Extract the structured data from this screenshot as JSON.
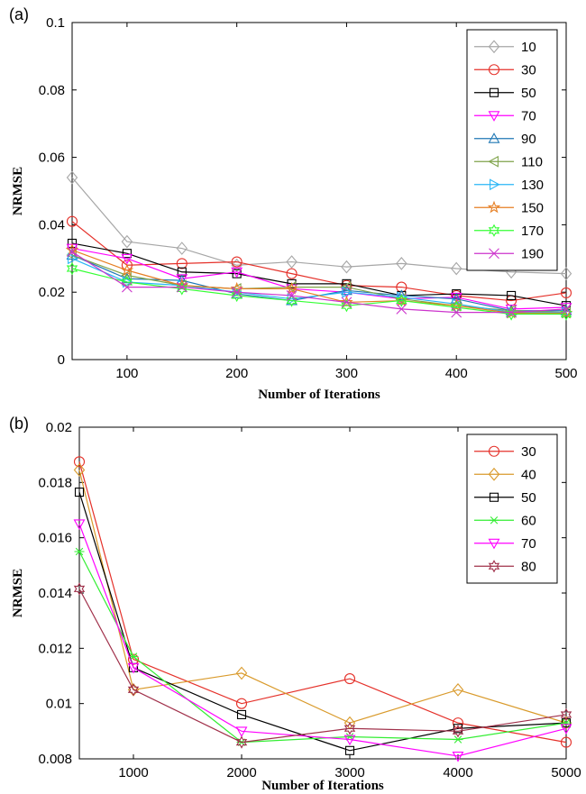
{
  "chart_data": [
    {
      "type": "line",
      "panel_label": "(a)",
      "xlabel": "Number of Iterations",
      "ylabel": "NRMSE",
      "xlim": [
        50,
        500
      ],
      "ylim": [
        0,
        0.1
      ],
      "x_ticks": [
        100,
        200,
        300,
        400,
        500
      ],
      "x_tick_labels": [
        "100",
        "200",
        "300",
        "400",
        "500"
      ],
      "y_ticks": [
        0,
        0.02,
        0.04,
        0.06,
        0.08,
        0.1
      ],
      "y_tick_labels": [
        "0",
        "0.02",
        "0.04",
        "0.06",
        "0.08",
        "0.1"
      ],
      "legend_position": "top-right",
      "x": [
        50,
        100,
        150,
        200,
        250,
        300,
        350,
        400,
        450,
        500
      ],
      "series": [
        {
          "name": "10",
          "color": "#a6a6a6",
          "marker": "diamond",
          "values": [
            0.054,
            0.035,
            0.033,
            0.028,
            0.029,
            0.0275,
            0.0285,
            0.027,
            0.026,
            0.0255
          ]
        },
        {
          "name": "30",
          "color": "#e5312a",
          "marker": "circle",
          "values": [
            0.041,
            0.028,
            0.0285,
            0.029,
            0.0255,
            0.022,
            0.0215,
            0.019,
            0.0175,
            0.0198
          ]
        },
        {
          "name": "50",
          "color": "#000000",
          "marker": "square",
          "values": [
            0.0345,
            0.0315,
            0.026,
            0.0255,
            0.0225,
            0.0225,
            0.019,
            0.0195,
            0.019,
            0.016
          ]
        },
        {
          "name": "70",
          "color": "#ff00ff",
          "marker": "triangle-down",
          "values": [
            0.033,
            0.03,
            0.024,
            0.026,
            0.021,
            0.02,
            0.018,
            0.0185,
            0.015,
            0.0155
          ]
        },
        {
          "name": "90",
          "color": "#1f77b4",
          "marker": "triangle-up",
          "values": [
            0.031,
            0.024,
            0.0235,
            0.0195,
            0.0175,
            0.0205,
            0.019,
            0.018,
            0.0145,
            0.0145
          ]
        },
        {
          "name": "110",
          "color": "#7fa34a",
          "marker": "triangle-left",
          "values": [
            0.031,
            0.025,
            0.022,
            0.021,
            0.0215,
            0.0215,
            0.018,
            0.016,
            0.0145,
            0.014
          ]
        },
        {
          "name": "130",
          "color": "#29b6f6",
          "marker": "triangle-right",
          "values": [
            0.03,
            0.023,
            0.022,
            0.02,
            0.018,
            0.02,
            0.0185,
            0.0165,
            0.014,
            0.014
          ]
        },
        {
          "name": "150",
          "color": "#e67e22",
          "marker": "star",
          "values": [
            0.0325,
            0.0265,
            0.022,
            0.021,
            0.021,
            0.017,
            0.0175,
            0.016,
            0.0138,
            0.0138
          ]
        },
        {
          "name": "170",
          "color": "#33ff33",
          "marker": "hexagram",
          "values": [
            0.027,
            0.023,
            0.021,
            0.019,
            0.0175,
            0.016,
            0.0175,
            0.0155,
            0.0135,
            0.0135
          ]
        },
        {
          "name": "190",
          "color": "#cc33cc",
          "marker": "x",
          "values": [
            0.032,
            0.0215,
            0.0215,
            0.02,
            0.019,
            0.017,
            0.015,
            0.014,
            0.014,
            0.015
          ]
        }
      ]
    },
    {
      "type": "line",
      "panel_label": "(b)",
      "xlabel": "Number of Iterations",
      "ylabel": "NRMSE",
      "xlim": [
        500,
        5000
      ],
      "ylim": [
        0.008,
        0.02
      ],
      "x_ticks": [
        1000,
        2000,
        3000,
        4000,
        5000
      ],
      "x_tick_labels": [
        "1000",
        "2000",
        "3000",
        "4000",
        "5000"
      ],
      "y_ticks": [
        0.008,
        0.01,
        0.012,
        0.014,
        0.016,
        0.018,
        0.02
      ],
      "y_tick_labels": [
        "0.008",
        "0.01",
        "0.012",
        "0.014",
        "0.016",
        "0.018",
        "0.02"
      ],
      "legend_position": "top-right",
      "x": [
        500,
        1000,
        2000,
        3000,
        4000,
        5000
      ],
      "series": [
        {
          "name": "30",
          "color": "#e5312a",
          "marker": "circle",
          "values": [
            0.01875,
            0.0116,
            0.01,
            0.0109,
            0.0093,
            0.0086
          ]
        },
        {
          "name": "40",
          "color": "#d99a2b",
          "marker": "diamond",
          "values": [
            0.01845,
            0.0105,
            0.0111,
            0.0093,
            0.0105,
            0.0093
          ]
        },
        {
          "name": "50",
          "color": "#000000",
          "marker": "square",
          "values": [
            0.01765,
            0.0113,
            0.0096,
            0.0083,
            0.0091,
            0.0093
          ]
        },
        {
          "name": "60",
          "color": "#33ee33",
          "marker": "asterisk",
          "values": [
            0.0155,
            0.0117,
            0.0086,
            0.0088,
            0.0087,
            0.0093
          ]
        },
        {
          "name": "70",
          "color": "#ff00ff",
          "marker": "triangle-down",
          "values": [
            0.0165,
            0.0113,
            0.009,
            0.0087,
            0.0081,
            0.0091
          ]
        },
        {
          "name": "80",
          "color": "#a0304a",
          "marker": "hexagram",
          "values": [
            0.01415,
            0.0105,
            0.0086,
            0.0091,
            0.009,
            0.0096
          ]
        }
      ]
    }
  ]
}
